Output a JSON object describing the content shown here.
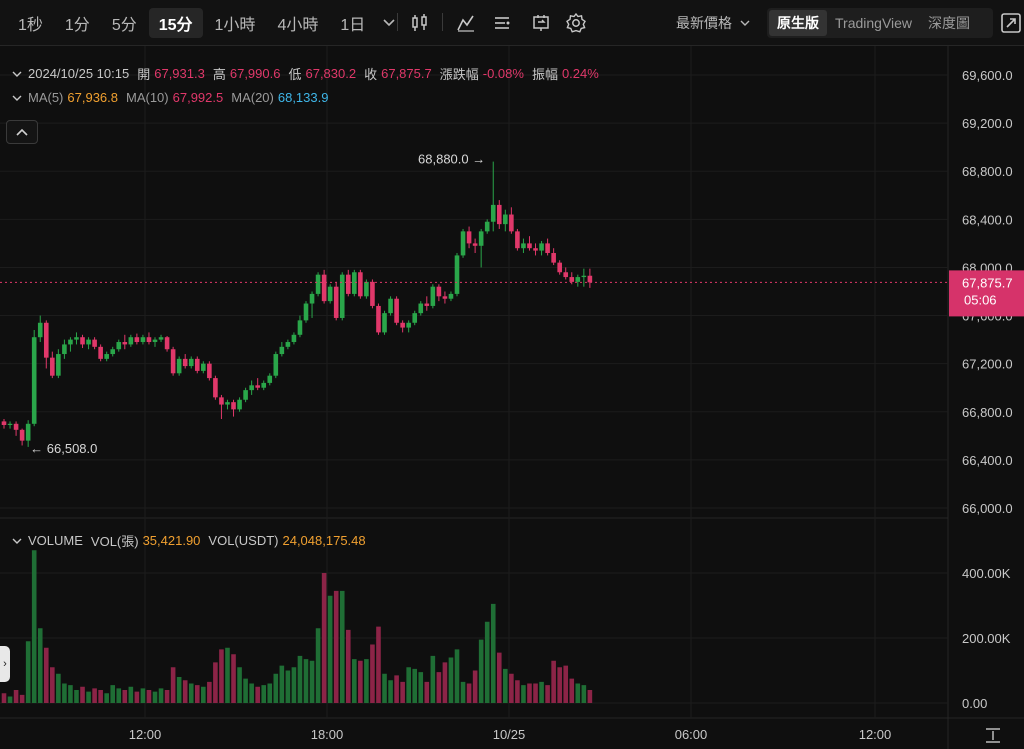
{
  "toolbar": {
    "intervals": [
      "1秒",
      "1分",
      "5分",
      "15分",
      "1小時",
      "4小時",
      "1日"
    ],
    "active_interval": "15分",
    "price_type": "最新價格",
    "views": [
      "原生版",
      "TradingView",
      "深度圖"
    ],
    "active_view": "原生版",
    "icons": [
      "candle-type-icon",
      "indicator-icon",
      "settings-list-icon",
      "replay-icon",
      "gear-icon",
      "fullscreen-icon"
    ]
  },
  "ohlc": {
    "datetime": "2024/10/25 10:15",
    "open_label": "開",
    "open": "67,931.3",
    "high_label": "高",
    "high": "67,990.6",
    "low_label": "低",
    "low": "67,830.2",
    "close_label": "收",
    "close": "67,875.7",
    "change_label": "漲跌幅",
    "change": "-0.08%",
    "amplitude_label": "振幅",
    "amplitude": "0.24%"
  },
  "ma": {
    "ma5_label": "MA(5)",
    "ma5": "67,936.8",
    "ma10_label": "MA(10)",
    "ma10": "67,992.5",
    "ma20_label": "MA(20)",
    "ma20": "68,133.9"
  },
  "volume": {
    "label": "VOLUME",
    "vol_contract_label": "VOL(張)",
    "vol_contract": "35,421.90",
    "vol_usdt_label": "VOL(USDT)",
    "vol_usdt": "24,048,175.48"
  },
  "price_axis": [
    "69,600.0",
    "69,200.0",
    "68,800.0",
    "68,400.0",
    "68,000.0",
    "67,600.0",
    "67,200.0",
    "66,800.0",
    "66,400.0",
    "66,000.0"
  ],
  "volume_axis": [
    "400.00K",
    "200.00K",
    "0.00"
  ],
  "time_axis": [
    "12:00",
    "18:00",
    "10/25",
    "06:00",
    "12:00"
  ],
  "last_price": {
    "price": "67,875.7",
    "countdown": "05:06"
  },
  "annotations": {
    "max": "68,880.0",
    "min": "66,508.0"
  },
  "colors": {
    "up": "#2aa64a",
    "down": "#e0386a",
    "background": "#0f0f0f"
  },
  "chart_data": {
    "type": "candlestick",
    "interval": "15m",
    "candles": [
      [
        66720,
        66740,
        66660,
        66690
      ],
      [
        66690,
        66720,
        66660,
        66700
      ],
      [
        66700,
        66720,
        66600,
        66650
      ],
      [
        66650,
        66660,
        66520,
        66560
      ],
      [
        66560,
        66730,
        66508,
        66700
      ],
      [
        66700,
        67480,
        66680,
        67420
      ],
      [
        67420,
        67600,
        67380,
        67540
      ],
      [
        67540,
        67560,
        67160,
        67250
      ],
      [
        67250,
        67300,
        67080,
        67100
      ],
      [
        67100,
        67320,
        67080,
        67280
      ],
      [
        67280,
        67400,
        67240,
        67360
      ],
      [
        67360,
        67420,
        67300,
        67400
      ],
      [
        67400,
        67460,
        67360,
        67420
      ],
      [
        67420,
        67440,
        67330,
        67360
      ],
      [
        67360,
        67420,
        67320,
        67400
      ],
      [
        67400,
        67420,
        67320,
        67340
      ],
      [
        67340,
        67360,
        67220,
        67240
      ],
      [
        67240,
        67300,
        67220,
        67280
      ],
      [
        67280,
        67340,
        67260,
        67320
      ],
      [
        67320,
        67400,
        67300,
        67380
      ],
      [
        67380,
        67440,
        67320,
        67360
      ],
      [
        67360,
        67440,
        67340,
        67420
      ],
      [
        67420,
        67450,
        67360,
        67380
      ],
      [
        67380,
        67440,
        67360,
        67420
      ],
      [
        67420,
        67460,
        67360,
        67380
      ],
      [
        67380,
        67420,
        67340,
        67400
      ],
      [
        67400,
        67440,
        67380,
        67420
      ],
      [
        67420,
        67430,
        67300,
        67320
      ],
      [
        67320,
        67340,
        67100,
        67120
      ],
      [
        67120,
        67260,
        67100,
        67240
      ],
      [
        67240,
        67280,
        67160,
        67180
      ],
      [
        67180,
        67260,
        67160,
        67240
      ],
      [
        67240,
        67260,
        67120,
        67140
      ],
      [
        67140,
        67220,
        67120,
        67200
      ],
      [
        67200,
        67220,
        67060,
        67080
      ],
      [
        67080,
        67100,
        66900,
        66920
      ],
      [
        66920,
        66940,
        66740,
        66860
      ],
      [
        66860,
        66900,
        66820,
        66880
      ],
      [
        66880,
        66900,
        66760,
        66820
      ],
      [
        66820,
        66920,
        66800,
        66900
      ],
      [
        66900,
        67000,
        66880,
        66980
      ],
      [
        66980,
        67060,
        66940,
        67020
      ],
      [
        67020,
        67080,
        66980,
        67000
      ],
      [
        67000,
        67060,
        66980,
        67040
      ],
      [
        67040,
        67120,
        67020,
        67100
      ],
      [
        67100,
        67300,
        67080,
        67280
      ],
      [
        67280,
        67380,
        67260,
        67340
      ],
      [
        67340,
        67400,
        67320,
        67380
      ],
      [
        67380,
        67460,
        67360,
        67440
      ],
      [
        67440,
        67600,
        67420,
        67560
      ],
      [
        67560,
        67720,
        67540,
        67700
      ],
      [
        67700,
        67800,
        67580,
        67780
      ],
      [
        67780,
        67960,
        67760,
        67940
      ],
      [
        67940,
        67980,
        67700,
        67720
      ],
      [
        67720,
        67860,
        67700,
        67840
      ],
      [
        67840,
        67880,
        67560,
        67580
      ],
      [
        67580,
        67960,
        67560,
        67940
      ],
      [
        67940,
        67980,
        67760,
        67780
      ],
      [
        67780,
        67980,
        67760,
        67960
      ],
      [
        67960,
        67980,
        67740,
        67760
      ],
      [
        67760,
        67900,
        67740,
        67880
      ],
      [
        67880,
        67900,
        67660,
        67680
      ],
      [
        67680,
        67700,
        67440,
        67460
      ],
      [
        67460,
        67640,
        67440,
        67620
      ],
      [
        67620,
        67760,
        67600,
        67740
      ],
      [
        67740,
        67760,
        67520,
        67540
      ],
      [
        67540,
        67560,
        67460,
        67500
      ],
      [
        67500,
        67560,
        67460,
        67540
      ],
      [
        67540,
        67640,
        67520,
        67620
      ],
      [
        67620,
        67720,
        67600,
        67700
      ],
      [
        67700,
        67760,
        67640,
        67680
      ],
      [
        67680,
        67860,
        67660,
        67840
      ],
      [
        67840,
        67860,
        67720,
        67760
      ],
      [
        67760,
        67800,
        67700,
        67740
      ],
      [
        67740,
        67800,
        67720,
        67780
      ],
      [
        67780,
        68120,
        67760,
        68100
      ],
      [
        68100,
        68320,
        68080,
        68300
      ],
      [
        68300,
        68340,
        68160,
        68200
      ],
      [
        68200,
        68240,
        68120,
        68180
      ],
      [
        68180,
        68320,
        68000,
        68300
      ],
      [
        68300,
        68400,
        68280,
        68380
      ],
      [
        68380,
        68880,
        68300,
        68520
      ],
      [
        68520,
        68560,
        68320,
        68360
      ],
      [
        68360,
        68480,
        68300,
        68440
      ],
      [
        68440,
        68500,
        68280,
        68300
      ],
      [
        68300,
        68320,
        68140,
        68160
      ],
      [
        68160,
        68240,
        68120,
        68200
      ],
      [
        68200,
        68260,
        68140,
        68160
      ],
      [
        68160,
        68200,
        68100,
        68140
      ],
      [
        68140,
        68220,
        68100,
        68200
      ],
      [
        68200,
        68240,
        68100,
        68120
      ],
      [
        68120,
        68160,
        68020,
        68040
      ],
      [
        68040,
        68060,
        67940,
        67960
      ],
      [
        67960,
        68000,
        67900,
        67920
      ],
      [
        67920,
        67960,
        67860,
        67880
      ],
      [
        67880,
        67940,
        67840,
        67920
      ],
      [
        67920,
        67990,
        67840,
        67931
      ],
      [
        67931,
        67990,
        67830,
        67876
      ]
    ],
    "volumes_k": [
      30,
      20,
      40,
      25,
      190,
      470,
      230,
      170,
      110,
      90,
      60,
      55,
      40,
      50,
      35,
      45,
      40,
      30,
      55,
      45,
      40,
      50,
      35,
      45,
      40,
      35,
      45,
      40,
      110,
      80,
      70,
      60,
      55,
      50,
      65,
      125,
      165,
      170,
      150,
      110,
      75,
      60,
      50,
      55,
      60,
      90,
      115,
      100,
      110,
      145,
      135,
      130,
      230,
      400,
      330,
      345,
      345,
      225,
      135,
      130,
      135,
      180,
      235,
      90,
      70,
      85,
      65,
      110,
      105,
      95,
      65,
      145,
      95,
      125,
      140,
      165,
      65,
      60,
      100,
      195,
      250,
      305,
      155,
      105,
      90,
      70,
      55,
      60,
      60,
      65,
      55,
      130,
      110,
      115,
      75,
      60,
      55,
      40
    ],
    "price_ylim": [
      66000,
      69600
    ],
    "high_marker": 68880.0,
    "low_marker": 66508.0,
    "last_price": 67875.7,
    "x_ticks": [
      "12:00",
      "18:00",
      "10/25",
      "06:00",
      "12:00"
    ],
    "y_ticks": [
      "69,600.0",
      "69,200.0",
      "68,800.0",
      "68,400.0",
      "68,000.0",
      "67,600.0",
      "67,200.0",
      "66,800.0",
      "66,400.0",
      "66,000.0"
    ],
    "volume_ticks": [
      "400.00K",
      "200.00K",
      "0.00"
    ]
  }
}
